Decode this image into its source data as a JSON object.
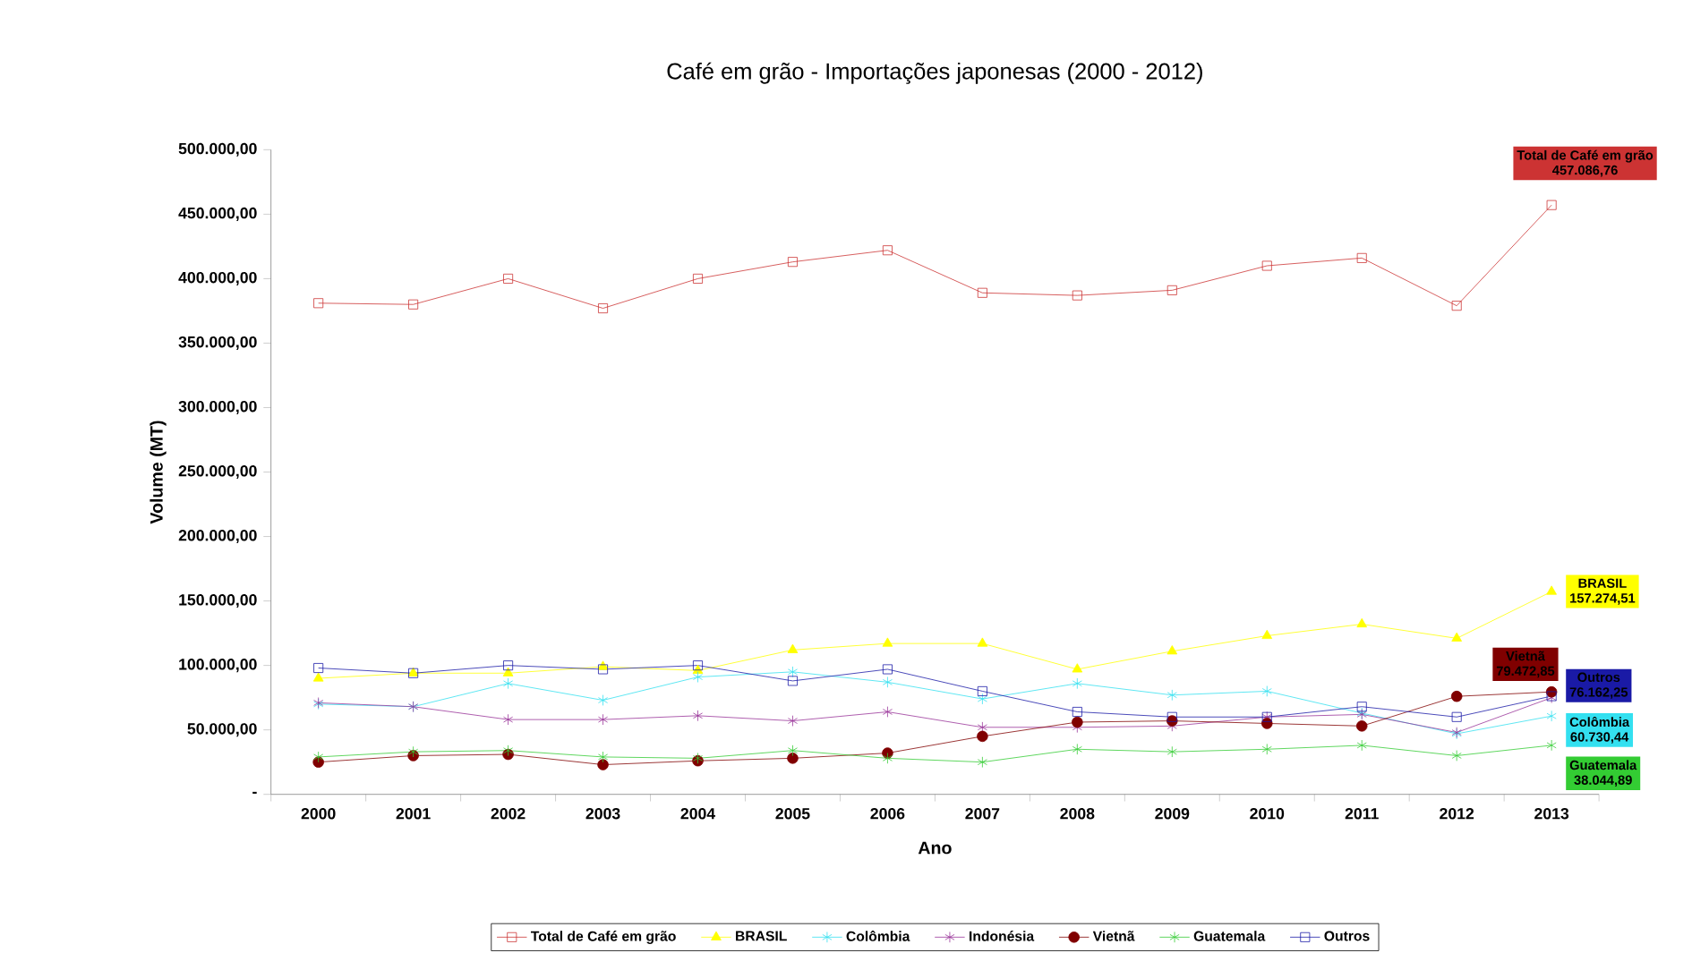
{
  "chart_data": {
    "type": "line",
    "title": "Café em grão - Importações japonesas  (2000 - 2012)",
    "xlabel": "Ano",
    "ylabel": "Volume (MT)",
    "categories": [
      "2000",
      "2001",
      "2002",
      "2003",
      "2004",
      "2005",
      "2006",
      "2007",
      "2008",
      "2009",
      "2010",
      "2011",
      "2012",
      "2013"
    ],
    "ylim": [
      0,
      500000
    ],
    "yticks": [
      {
        "value": 0,
        "label": "-"
      },
      {
        "value": 50000,
        "label": "50.000,00"
      },
      {
        "value": 100000,
        "label": "100.000,00"
      },
      {
        "value": 150000,
        "label": "150.000,00"
      },
      {
        "value": 200000,
        "label": "200.000,00"
      },
      {
        "value": 250000,
        "label": "250.000,00"
      },
      {
        "value": 300000,
        "label": "300.000,00"
      },
      {
        "value": 350000,
        "label": "350.000,00"
      },
      {
        "value": 400000,
        "label": "400.000,00"
      },
      {
        "value": 450000,
        "label": "450.000,00"
      },
      {
        "value": 500000,
        "label": "500.000,00"
      }
    ],
    "legend": "bottom",
    "series": [
      {
        "name": "Total de Café em grão",
        "color": "#cc3333",
        "marker": "square",
        "values": [
          381000,
          380000,
          400000,
          377000,
          400000,
          413000,
          422000,
          389000,
          387000,
          391000,
          410000,
          416000,
          379000,
          457086.76
        ],
        "value_labels": [
          null,
          null,
          null,
          null,
          null,
          null,
          null,
          null,
          null,
          null,
          null,
          null,
          null,
          "457.086,76"
        ]
      },
      {
        "name": "BRASIL",
        "color": "#ffff00",
        "marker": "triangle",
        "values": [
          90000,
          94000,
          94000,
          99000,
          96000,
          112000,
          117000,
          117000,
          97000,
          111000,
          123000,
          132000,
          121000,
          157274.51
        ],
        "value_labels": [
          null,
          null,
          null,
          null,
          null,
          null,
          null,
          null,
          null,
          null,
          null,
          null,
          null,
          "157.274,51"
        ]
      },
      {
        "name": "Colômbia",
        "color": "#33e0f0",
        "marker": "cross",
        "values": [
          70000,
          68000,
          86000,
          73000,
          91000,
          95000,
          87000,
          74000,
          86000,
          77000,
          80000,
          63000,
          47000,
          60730.44
        ],
        "value_labels": [
          null,
          null,
          null,
          null,
          null,
          null,
          null,
          null,
          null,
          null,
          null,
          null,
          null,
          "60.730,44"
        ]
      },
      {
        "name": "Indonésia",
        "color": "#993399",
        "marker": "cross",
        "values": [
          71000,
          68000,
          58000,
          58000,
          61000,
          57000,
          64000,
          52000,
          52000,
          53000,
          60000,
          62000,
          48000,
          75000
        ]
      },
      {
        "name": "Vietnã",
        "color": "#800000",
        "marker": "circle",
        "values": [
          25000,
          30000,
          31000,
          23000,
          26000,
          28000,
          32000,
          45000,
          56000,
          57000,
          55000,
          53000,
          76000,
          79472.85
        ],
        "value_labels": [
          null,
          null,
          null,
          null,
          null,
          null,
          null,
          null,
          null,
          null,
          null,
          null,
          null,
          "79.472,85"
        ]
      },
      {
        "name": "Guatemala",
        "color": "#33cc33",
        "marker": "cross",
        "values": [
          29000,
          33000,
          34000,
          29000,
          28000,
          34000,
          28000,
          25000,
          35000,
          33000,
          35000,
          38000,
          30000,
          38044.89
        ],
        "value_labels": [
          null,
          null,
          null,
          null,
          null,
          null,
          null,
          null,
          null,
          null,
          null,
          null,
          null,
          "38.044,89"
        ]
      },
      {
        "name": "Outros",
        "color": "#1a1aa6",
        "marker": "square",
        "values": [
          98000,
          94000,
          100000,
          97000,
          100000,
          88000,
          97000,
          80000,
          64000,
          60000,
          60000,
          68000,
          60000,
          76162.25
        ],
        "value_labels": [
          null,
          null,
          null,
          null,
          null,
          null,
          null,
          null,
          null,
          null,
          null,
          null,
          null,
          "76.162,25"
        ]
      }
    ]
  }
}
